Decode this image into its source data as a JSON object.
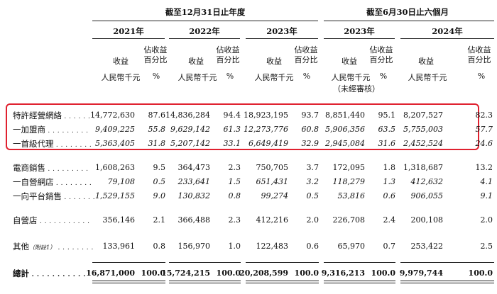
{
  "header": {
    "period_fy": "截至12月31日止年度",
    "period_6m": "截至6月30日止六個月",
    "years": [
      "2021年",
      "2022年",
      "2023年",
      "2023年",
      "2024年"
    ],
    "col_revenue": "收益",
    "col_pct_line1": "佔收益",
    "col_pct_line2": "百分比",
    "unit_rmb": "人民幣千元",
    "unit_pct": "%",
    "unaudited": "（未經審核）"
  },
  "rows": [
    {
      "label": "特許經營網絡",
      "leader": ". . . . . . .",
      "values": [
        "14,772,630",
        "87.6",
        "14,836,284",
        "94.4",
        "18,923,195",
        "93.7",
        "8,851,440",
        "95.1",
        "8,207,527",
        "82.3"
      ],
      "italic": false
    },
    {
      "label": "一加盟商",
      "leader": ". . . . . . . . .",
      "values": [
        "9,409,225",
        "55.8",
        "9,629,142",
        "61.3",
        "12,273,776",
        "60.8",
        "5,906,356",
        "63.5",
        "5,755,003",
        "57.7"
      ],
      "italic": true
    },
    {
      "label": "一首級代理",
      "leader": ". . . . . . . .",
      "values": [
        "5,363,405",
        "31.8",
        "5,207,142",
        "33.1",
        "6,649,419",
        "32.9",
        "2,945,084",
        "31.6",
        "2,452,524",
        "24.6"
      ],
      "italic": true
    },
    {
      "label": "電商銷售",
      "leader": ". . . . . . . . .",
      "values": [
        "1,608,263",
        "9.5",
        "364,473",
        "2.3",
        "750,705",
        "3.7",
        "172,095",
        "1.8",
        "1,318,687",
        "13.2"
      ],
      "italic": false
    },
    {
      "label": "一自營網店",
      "leader": ". . . . . . . .",
      "values": [
        "79,108",
        "0.5",
        "233,641",
        "1.5",
        "651,431",
        "3.2",
        "118,279",
        "1.3",
        "412,632",
        "4.1"
      ],
      "italic": true
    },
    {
      "label": "一向平台銷售",
      "leader": ". . . . . . .",
      "values": [
        "1,529,155",
        "9.0",
        "130,832",
        "0.8",
        "99,274",
        "0.5",
        "53,816",
        "0.6",
        "906,055",
        "9.1"
      ],
      "italic": true
    },
    {
      "label": "自營店",
      "leader": ". . . . . . . . . . .",
      "values": [
        "356,146",
        "2.1",
        "366,488",
        "2.3",
        "412,216",
        "2.0",
        "226,708",
        "2.4",
        "200,108",
        "2.0"
      ],
      "italic": false
    },
    {
      "label": "其他",
      "note": "（附註1）",
      "leader": ". . . . . . . .",
      "values": [
        "133,961",
        "0.8",
        "156,970",
        "1.0",
        "122,483",
        "0.6",
        "65,970",
        "0.7",
        "253,422",
        "2.5"
      ],
      "italic": false
    },
    {
      "label": "總計",
      "leader": ". . . . . . . . . . .",
      "values": [
        "16,871,000",
        "100.0",
        "15,724,215",
        "100.0",
        "20,208,599",
        "100.0",
        "9,316,213",
        "100.0",
        "9,979,744",
        "100.0"
      ],
      "italic": false,
      "bold": true
    }
  ]
}
